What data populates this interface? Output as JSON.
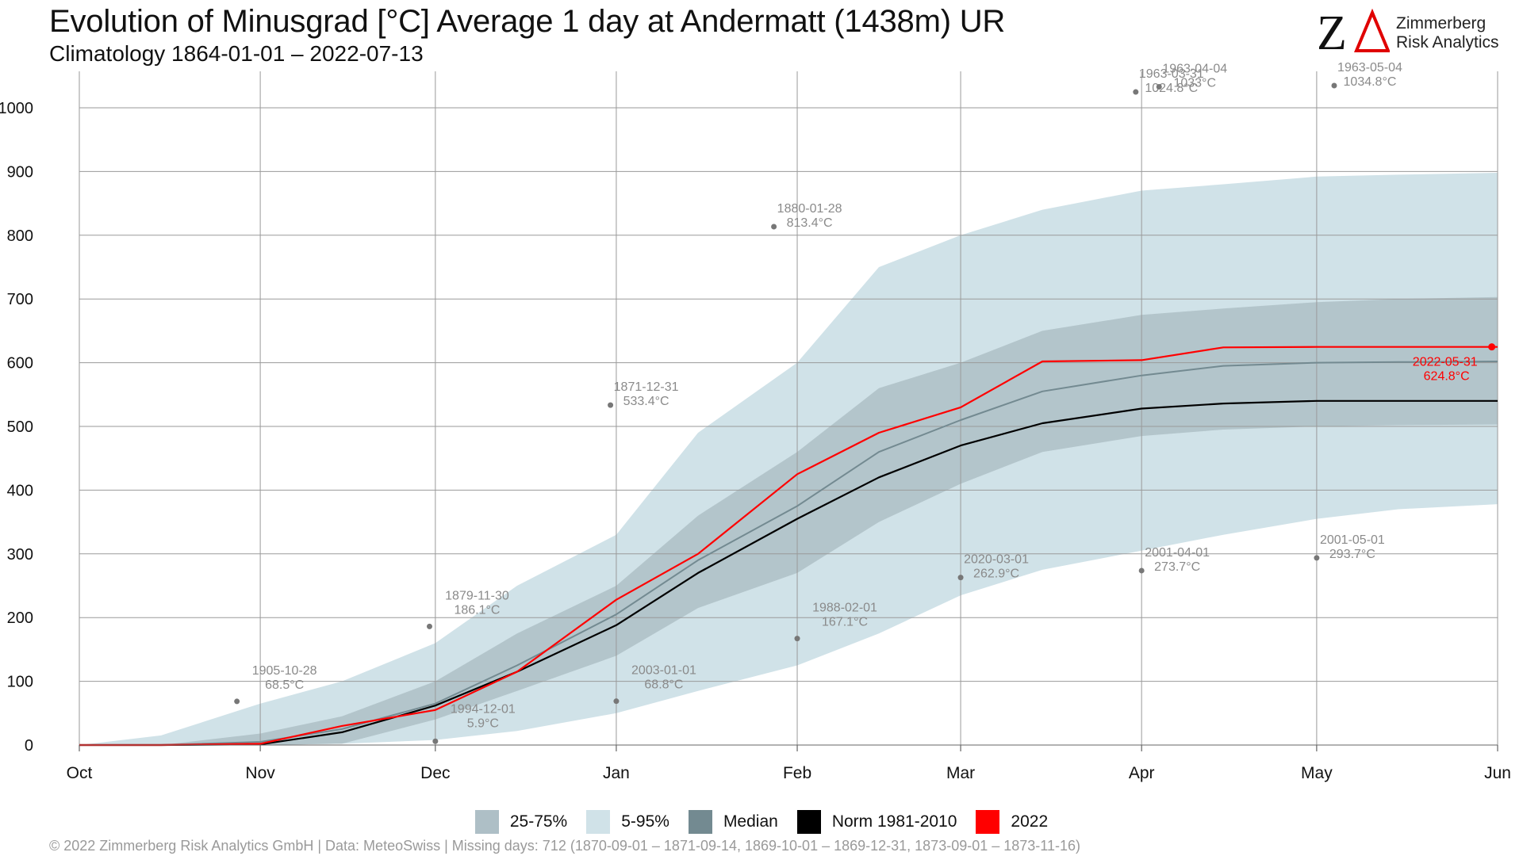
{
  "header": {
    "title": "Evolution of Minusgrad [°C] Average 1 day at Andermatt (1438m) UR",
    "subtitle": "Climatology 1864-01-01 – 2022-07-13"
  },
  "brand": {
    "logo_text": "ZA",
    "name_line1": "Zimmerberg",
    "name_line2": "Risk Analytics"
  },
  "footer": {
    "text": "© 2022 Zimmerberg Risk Analytics GmbH | Data: MeteoSwiss | Missing days: 712 (1870-09-01 – 1871-09-14, 1869-10-01 – 1869-12-31, 1873-09-01 – 1873-11-16)"
  },
  "legend": [
    {
      "label": "25-75%",
      "color": "#aebfc6"
    },
    {
      "label": "5-95%",
      "color": "#d0e2e8"
    },
    {
      "label": "Median",
      "color": "#738a91"
    },
    {
      "label": "Norm 1981-2010",
      "color": "#000000"
    },
    {
      "label": "2022",
      "color": "#ff0000"
    }
  ],
  "chart_data": {
    "type": "line",
    "title": "Evolution of Minusgrad [°C] Average 1 day at Andermatt (1438m) UR",
    "subtitle": "Climatology 1864-01-01 – 2022-07-13",
    "x_axis": {
      "ticks": [
        "Oct",
        "Nov",
        "Dec",
        "Jan",
        "Feb",
        "Mar",
        "Apr",
        "May",
        "Jun"
      ],
      "tick_dates": [
        "10-01",
        "11-01",
        "12-01",
        "01-01",
        "02-01",
        "03-01",
        "04-01",
        "05-01",
        "06-01"
      ],
      "range": [
        "10-01",
        "06-01"
      ]
    },
    "y_axis": {
      "ticks": [
        0,
        100,
        200,
        300,
        400,
        500,
        600,
        700,
        800,
        900,
        1000
      ],
      "ylim": [
        -15,
        1045
      ]
    },
    "grid": true,
    "legend_position": "bottom",
    "x_dates": [
      "10-01",
      "10-15",
      "11-01",
      "11-15",
      "12-01",
      "12-15",
      "01-01",
      "01-15",
      "02-01",
      "02-15",
      "03-01",
      "03-15",
      "04-01",
      "04-15",
      "05-01",
      "05-15",
      "06-01"
    ],
    "series": [
      {
        "name": "5-95%",
        "kind": "band",
        "lower": [
          0,
          0,
          0,
          2,
          8,
          22,
          50,
          85,
          125,
          175,
          235,
          275,
          305,
          330,
          355,
          370,
          378
        ],
        "upper": [
          0,
          15,
          65,
          100,
          160,
          250,
          330,
          490,
          600,
          750,
          800,
          840,
          870,
          880,
          892,
          895,
          898
        ]
      },
      {
        "name": "25-75%",
        "kind": "band",
        "lower": [
          0,
          0,
          0,
          2,
          40,
          85,
          140,
          215,
          270,
          350,
          410,
          460,
          485,
          495,
          500,
          502,
          503
        ],
        "upper": [
          0,
          0,
          18,
          45,
          100,
          175,
          250,
          360,
          460,
          560,
          600,
          650,
          675,
          685,
          695,
          700,
          703
        ]
      },
      {
        "name": "Median",
        "kind": "line",
        "values": [
          0,
          0,
          5,
          25,
          65,
          125,
          205,
          290,
          375,
          460,
          510,
          555,
          580,
          595,
          600,
          601,
          602
        ]
      },
      {
        "name": "Norm 1981-2010",
        "kind": "line",
        "values": [
          0,
          0,
          1,
          20,
          62,
          115,
          188,
          270,
          355,
          420,
          470,
          505,
          528,
          536,
          540,
          540,
          540
        ]
      },
      {
        "name": "2022",
        "kind": "line",
        "values": [
          0,
          0,
          2,
          30,
          55,
          115,
          228,
          300,
          425,
          490,
          530,
          602,
          604,
          624,
          624.8,
          624.8,
          624.8
        ]
      }
    ],
    "annotations": [
      {
        "date": "10-28",
        "year": "1905",
        "label": "1905-10-28",
        "value_label": "68.5°C",
        "value": 68.5
      },
      {
        "date": "11-30",
        "year": "1879",
        "label": "1879-11-30",
        "value_label": "186.1°C",
        "value": 186.1
      },
      {
        "date": "12-01",
        "year": "1994",
        "label": "1994-12-01",
        "value_label": "5.9°C",
        "value": 5.9
      },
      {
        "date": "12-31",
        "year": "1871",
        "label": "1871-12-31",
        "value_label": "533.4°C",
        "value": 533.4
      },
      {
        "date": "01-01",
        "year": "2003",
        "label": "2003-01-01",
        "value_label": "68.8°C",
        "value": 68.8
      },
      {
        "date": "01-28",
        "year": "1880",
        "label": "1880-01-28",
        "value_label": "813.4°C",
        "value": 813.4
      },
      {
        "date": "02-01",
        "year": "1988",
        "label": "1988-02-01",
        "value_label": "167.1°C",
        "value": 167.1
      },
      {
        "date": "03-01",
        "year": "2020",
        "label": "2020-03-01",
        "value_label": "262.9°C",
        "value": 262.9
      },
      {
        "date": "03-31",
        "year": "1963",
        "label": "1963-03-31",
        "value_label": "1024.8°C",
        "value": 1024.8
      },
      {
        "date": "04-01",
        "year": "2001",
        "label": "2001-04-01",
        "value_label": "273.7°C",
        "value": 273.7
      },
      {
        "date": "04-04",
        "year": "1963",
        "label": "1963-04-04",
        "value_label": "1033°C",
        "value": 1033
      },
      {
        "date": "05-01",
        "year": "2001",
        "label": "2001-05-01",
        "value_label": "293.7°C",
        "value": 293.7
      },
      {
        "date": "05-04",
        "year": "1963",
        "label": "1963-05-04",
        "value_label": "1034.8°C",
        "value": 1034.8
      },
      {
        "date": "05-31",
        "year": "2022",
        "label": "2022-05-31",
        "value_label": "624.8°C",
        "value": 624.8,
        "highlight": true
      }
    ],
    "colors": {
      "band_5_95": "#d0e2e8",
      "band_25_75": "#aebfc6",
      "median": "#738a91",
      "norm": "#000000",
      "current": "#ff0000",
      "annotation_text": "#8a8a8a",
      "annotation_dot": "#777777"
    }
  }
}
